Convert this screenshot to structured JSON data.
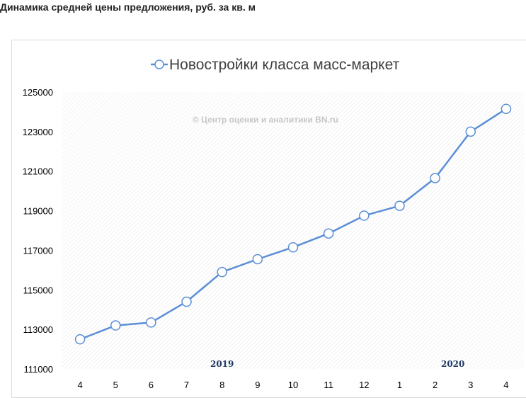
{
  "page": {
    "heading": "Динамика средней цены предложения, руб. за кв. м"
  },
  "chart_data": {
    "type": "line",
    "title": "",
    "legend": {
      "position": "top",
      "entries": [
        "Новостройки класса масс-маркет"
      ]
    },
    "watermark": "© Центр оценки и аналитики BN.ru",
    "categories": [
      "4",
      "5",
      "6",
      "7",
      "8",
      "9",
      "10",
      "11",
      "12",
      "1",
      "2",
      "3",
      "4"
    ],
    "year_labels": [
      {
        "text": "2019",
        "category_index": 4
      },
      {
        "text": "2020",
        "category_index": 10.5
      }
    ],
    "series": [
      {
        "name": "Новостройки класса масс-маркет",
        "color": "#5b8fd6",
        "values": [
          112500,
          113200,
          113350,
          114400,
          115900,
          116550,
          117150,
          117850,
          118750,
          119250,
          120650,
          123000,
          124150
        ]
      }
    ],
    "ylim": [
      111000,
      125000
    ],
    "yticks": [
      "111000",
      "113000",
      "115000",
      "117000",
      "119000",
      "121000",
      "123000",
      "125000"
    ],
    "xlabel": "",
    "ylabel": "",
    "grid": false,
    "plot_background": "hatched"
  }
}
